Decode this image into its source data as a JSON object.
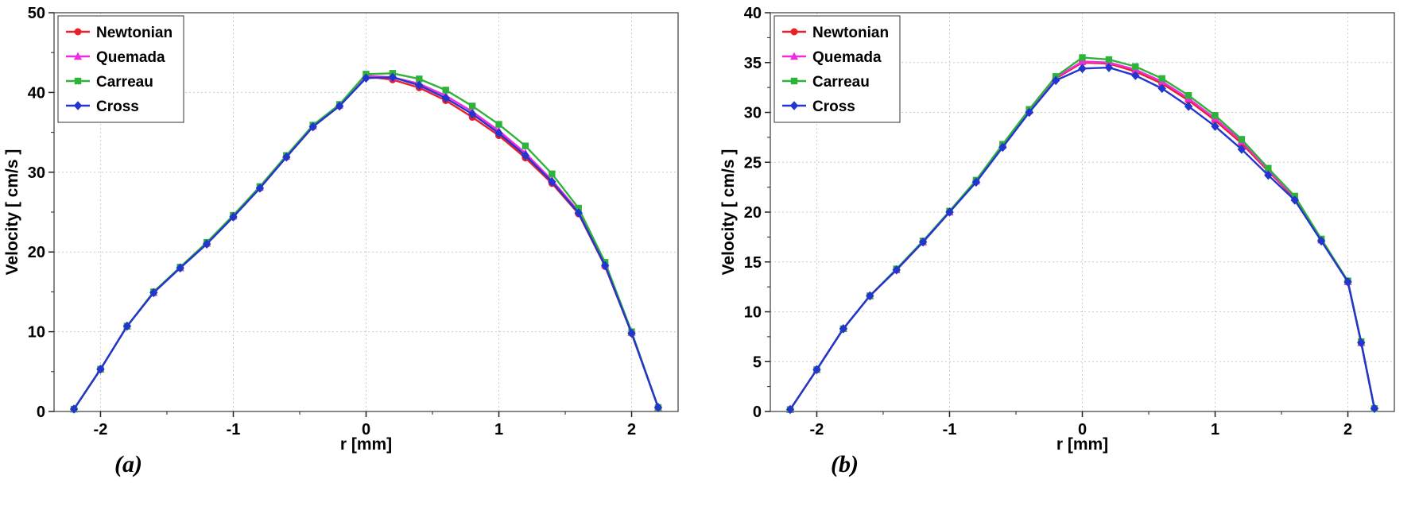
{
  "figure": {
    "captions": [
      {
        "label": "(a)"
      },
      {
        "label": "(b)"
      }
    ]
  },
  "chart_data": [
    {
      "id": "a",
      "type": "line",
      "caption": "(a)",
      "title": "",
      "xlabel": "r [mm]",
      "ylabel": "Velocity [ cm/s ]",
      "xlim": [
        -2.35,
        2.35
      ],
      "ylim": [
        0,
        50
      ],
      "xticks": [
        -2,
        -1,
        0,
        1,
        2
      ],
      "yticks": [
        0,
        10,
        20,
        30,
        40,
        50
      ],
      "grid": true,
      "legend_position": "top-left",
      "x": [
        -2.2,
        -2.0,
        -1.8,
        -1.6,
        -1.4,
        -1.2,
        -1.0,
        -0.8,
        -0.6,
        -0.4,
        -0.2,
        0.0,
        0.2,
        0.4,
        0.6,
        0.8,
        1.0,
        1.2,
        1.4,
        1.6,
        1.8,
        2.0,
        2.2
      ],
      "series": [
        {
          "name": "Newtonian",
          "color": "#e8202a",
          "marker": "circle",
          "values": [
            0.3,
            5.3,
            10.7,
            14.9,
            18.0,
            21.0,
            24.4,
            28.0,
            31.9,
            35.7,
            38.3,
            42.0,
            41.6,
            40.6,
            39.0,
            36.9,
            34.6,
            31.8,
            28.6,
            24.8,
            18.2,
            9.8,
            0.5
          ]
        },
        {
          "name": "Quemada",
          "color": "#f02ce0",
          "marker": "triangle",
          "values": [
            0.3,
            5.3,
            10.7,
            14.9,
            18.0,
            21.1,
            24.5,
            28.1,
            32.0,
            35.8,
            38.4,
            42.1,
            41.9,
            41.1,
            39.6,
            37.6,
            35.2,
            32.4,
            29.0,
            25.1,
            18.4,
            9.9,
            0.5
          ]
        },
        {
          "name": "Carreau",
          "color": "#2eb33a",
          "marker": "square",
          "values": [
            0.3,
            5.3,
            10.7,
            15.0,
            18.1,
            21.2,
            24.6,
            28.2,
            32.1,
            35.9,
            38.5,
            42.3,
            42.4,
            41.7,
            40.3,
            38.3,
            36.0,
            33.3,
            29.8,
            25.5,
            18.7,
            10.0,
            0.5
          ]
        },
        {
          "name": "Cross",
          "color": "#2236cf",
          "marker": "diamond",
          "values": [
            0.3,
            5.3,
            10.7,
            14.9,
            18.0,
            21.0,
            24.4,
            28.0,
            31.9,
            35.7,
            38.3,
            41.8,
            41.9,
            40.9,
            39.3,
            37.3,
            34.9,
            32.1,
            28.8,
            24.9,
            18.3,
            9.8,
            0.5
          ]
        }
      ]
    },
    {
      "id": "b",
      "type": "line",
      "caption": "(b)",
      "title": "",
      "xlabel": "r [mm]",
      "ylabel": "Velocity [ cm/s ]",
      "xlim": [
        -2.35,
        2.35
      ],
      "ylim": [
        0,
        40
      ],
      "xticks": [
        -2,
        -1,
        0,
        1,
        2
      ],
      "yticks": [
        0,
        5,
        10,
        15,
        20,
        25,
        30,
        35,
        40
      ],
      "grid": true,
      "legend_position": "top-left",
      "x": [
        -2.2,
        -2.0,
        -1.8,
        -1.6,
        -1.4,
        -1.2,
        -1.0,
        -0.8,
        -0.6,
        -0.4,
        -0.2,
        0.0,
        0.2,
        0.4,
        0.6,
        0.8,
        1.0,
        1.2,
        1.4,
        1.6,
        1.8,
        2.0,
        2.1,
        2.2
      ],
      "series": [
        {
          "name": "Newtonian",
          "color": "#e8202a",
          "marker": "circle",
          "values": [
            0.2,
            4.2,
            8.3,
            11.6,
            14.2,
            17.0,
            20.0,
            23.1,
            26.6,
            30.1,
            33.4,
            35.0,
            34.9,
            34.1,
            32.9,
            31.2,
            29.2,
            26.9,
            24.1,
            21.4,
            17.2,
            13.0,
            6.9,
            0.3
          ]
        },
        {
          "name": "Quemada",
          "color": "#f02ce0",
          "marker": "triangle",
          "values": [
            0.2,
            4.2,
            8.3,
            11.6,
            14.2,
            17.0,
            20.0,
            23.1,
            26.7,
            30.2,
            33.5,
            35.1,
            35.0,
            34.3,
            33.1,
            31.4,
            29.4,
            27.1,
            24.2,
            21.5,
            17.2,
            13.0,
            6.9,
            0.3
          ]
        },
        {
          "name": "Carreau",
          "color": "#2eb33a",
          "marker": "square",
          "values": [
            0.2,
            4.2,
            8.3,
            11.6,
            14.3,
            17.1,
            20.1,
            23.2,
            26.8,
            30.3,
            33.6,
            35.5,
            35.3,
            34.6,
            33.4,
            31.7,
            29.7,
            27.3,
            24.4,
            21.6,
            17.3,
            13.1,
            7.0,
            0.3
          ]
        },
        {
          "name": "Cross",
          "color": "#2236cf",
          "marker": "diamond",
          "values": [
            0.2,
            4.2,
            8.3,
            11.6,
            14.2,
            17.0,
            20.0,
            23.0,
            26.5,
            30.0,
            33.2,
            34.4,
            34.5,
            33.7,
            32.4,
            30.6,
            28.6,
            26.3,
            23.7,
            21.2,
            17.1,
            13.0,
            6.9,
            0.3
          ]
        }
      ]
    }
  ]
}
